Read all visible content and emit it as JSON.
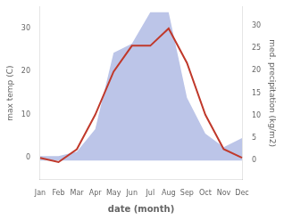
{
  "chart_data": {
    "type": "line",
    "xlabel": "date (month)",
    "ylabel": "max temp (C)",
    "y2label": "med. precipitation (kg/m2)",
    "categories": [
      "Jan",
      "Feb",
      "Mar",
      "Apr",
      "May",
      "Jun",
      "Jul",
      "Aug",
      "Sep",
      "Oct",
      "Nov",
      "Dec"
    ],
    "series": [
      {
        "type": "area",
        "axis": "y2",
        "color": "#bcc5e8",
        "values": [
          1,
          1,
          2,
          7,
          24,
          26,
          33,
          33,
          14,
          6,
          3,
          5
        ]
      },
      {
        "type": "line",
        "axis": "y",
        "color": "#c0392b",
        "values": [
          0,
          -1,
          2,
          10,
          20,
          26,
          26,
          30,
          22,
          10,
          2,
          0
        ]
      }
    ],
    "ylim": [
      -5,
      35
    ],
    "yticks": [
      0,
      10,
      20,
      30
    ],
    "y2lim": [
      -4.17,
      34.17
    ],
    "y2ticks": [
      0,
      5,
      10,
      15,
      20,
      25,
      30
    ],
    "grid": false
  }
}
